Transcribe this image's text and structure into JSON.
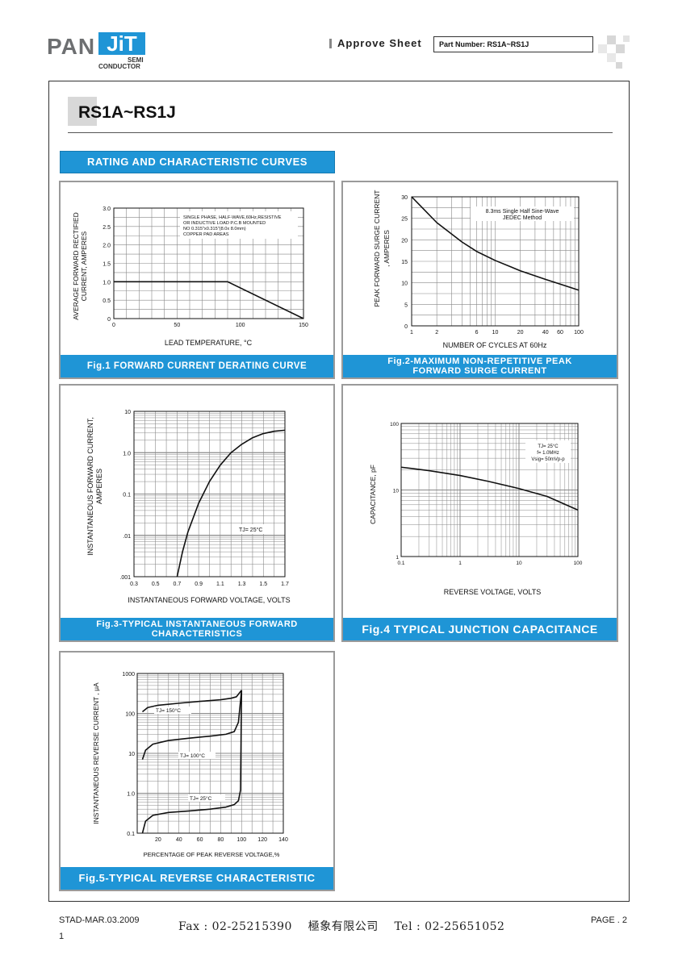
{
  "header": {
    "logo_pan": "PAN",
    "logo_jit": "JiT",
    "logo_semi": "SEMI",
    "logo_conductor": "CONDUCTOR",
    "approve_label": "Approve Sheet",
    "part_number": "Part Number: RS1A~RS1J",
    "brand_color": "#1f95d6"
  },
  "page": {
    "title": "RS1A~RS1J",
    "section_banner": "RATING AND CHARACTERISTIC CURVES"
  },
  "footer": {
    "doc_id": "STAD-MAR.03.2009",
    "page_num": "1",
    "contact": "Fax : 02-25215390    極象有限公司    Tel : 02-25651052",
    "page_label": "PAGE . 2"
  },
  "chart_data": [
    {
      "type": "line",
      "caption": "Fig.1 FORWARD CURRENT DERATING CURVE",
      "xlabel": "LEAD TEMPERATURE, °C",
      "ylabel": "AVERAGE FORWARD RECTIFIED CURRENT, AMPERES",
      "xlim": [
        0,
        150
      ],
      "ylim": [
        0,
        3.0
      ],
      "xticks": [
        "0",
        "50",
        "100",
        "150"
      ],
      "yticks": [
        "0",
        "0.5",
        "1.0",
        "1.5",
        "2.0",
        "2.5",
        "3.0"
      ],
      "annotation": [
        "SINGLE PHASE, HALF-WAVE,60Hz,RESISTIVE",
        "OR INDUCTIVE LOAD P.C.B MOUNTED",
        "NO 0.315\"x0.315\"(8.0x 8.0mm)",
        "COPPER PAD AREAS"
      ],
      "x": [
        0,
        90,
        150
      ],
      "y": [
        1.0,
        1.0,
        0
      ]
    },
    {
      "type": "line",
      "caption": [
        "Fig.2-MAXIMUM NON-REPETITIVE PEAK",
        "FORWARD SURGE CURRENT"
      ],
      "xlabel": "NUMBER OF CYCLES AT 60Hz",
      "ylabel": [
        "PEAK FORWARD SURGE CURRENT",
        ", AMPERES"
      ],
      "xscale": "log",
      "xlim": [
        1,
        100
      ],
      "ylim": [
        0,
        30
      ],
      "xticks": [
        "1",
        "2",
        "6",
        "10",
        "20",
        "40",
        "60",
        "100"
      ],
      "yticks": [
        "0",
        "5",
        "10",
        "15",
        "20",
        "25",
        "30"
      ],
      "annotation": [
        "8.3ms Single Half Sine-Wave",
        "JEDEC Method"
      ],
      "x": [
        1,
        2,
        4,
        6,
        10,
        20,
        40,
        60,
        100
      ],
      "y": [
        30,
        24,
        19.5,
        17.3,
        15.2,
        12.8,
        10.8,
        9.7,
        8.3
      ]
    },
    {
      "type": "line",
      "caption": [
        "Fig.3-TYPICAL INSTANTANEOUS FORWARD",
        "CHARACTERISTICS"
      ],
      "xlabel": "INSTANTANEOUS FORWARD VOLTAGE, VOLTS",
      "ylabel": [
        "INSTANTANEOUS FORWARD CURRENT,",
        "AMPERES"
      ],
      "yscale": "log",
      "xlim": [
        0.3,
        1.7
      ],
      "ylim": [
        0.001,
        10
      ],
      "xticks": [
        "0.3",
        "0.5",
        "0.7",
        "0.9",
        "1.1",
        "1.3",
        "1.5",
        "1.7"
      ],
      "yticks": [
        ".001",
        ".01",
        "0.1",
        "1.0",
        "10"
      ],
      "annotation": "TJ= 25°C",
      "x": [
        0.7,
        0.75,
        0.8,
        0.9,
        1.0,
        1.1,
        1.2,
        1.3,
        1.4,
        1.5,
        1.6,
        1.7
      ],
      "y": [
        0.001,
        0.004,
        0.012,
        0.06,
        0.2,
        0.5,
        1.0,
        1.6,
        2.3,
        2.9,
        3.3,
        3.5
      ]
    },
    {
      "type": "line",
      "caption": "Fig.4 TYPICAL JUNCTION CAPACITANCE",
      "xlabel": "REVERSE VOLTAGE, VOLTS",
      "ylabel": "CAPACITANCE, pF",
      "xscale": "log",
      "yscale": "log",
      "xlim": [
        0.1,
        100
      ],
      "ylim": [
        1,
        100
      ],
      "xticks": [
        "0.1",
        "1",
        "10",
        "100"
      ],
      "yticks": [
        "1",
        "10",
        "100"
      ],
      "annotation": [
        "TJ= 25°C",
        "f= 1.0MHz",
        "Vsig= 50mVp-p"
      ],
      "x": [
        0.1,
        0.3,
        1,
        3,
        10,
        30,
        100
      ],
      "y": [
        22,
        19.5,
        16.5,
        13.5,
        10.5,
        8,
        5
      ]
    },
    {
      "type": "line",
      "caption": "Fig.5-TYPICAL REVERSE CHARACTERISTIC",
      "xlabel": "PERCENTAGE OF PEAK REVERSE VOLTAGE,%",
      "ylabel": "INSTANTANEOUS REVERSE CURRENT , μA",
      "yscale": "log",
      "xlim": [
        0,
        140
      ],
      "ylim": [
        0.1,
        1000
      ],
      "xticks": [
        "20",
        "40",
        "60",
        "80",
        "100",
        "120",
        "140"
      ],
      "yticks": [
        "0.1",
        "1.0",
        "10",
        "100",
        "1000"
      ],
      "series": [
        {
          "name": "TJ= 150°C",
          "x": [
            5,
            10,
            20,
            40,
            60,
            80,
            90,
            95,
            100
          ],
          "y": [
            110,
            140,
            160,
            180,
            200,
            220,
            240,
            260,
            380
          ]
        },
        {
          "name": "TJ= 100°C",
          "x": [
            5,
            8,
            15,
            30,
            50,
            70,
            85,
            93,
            97,
            100
          ],
          "y": [
            7,
            12,
            17,
            21,
            24,
            27,
            30,
            35,
            60,
            380
          ]
        },
        {
          "name": "TJ= 25°C",
          "x": [
            5,
            8,
            15,
            30,
            50,
            70,
            85,
            93,
            97,
            99,
            100
          ],
          "y": [
            0.1,
            0.2,
            0.28,
            0.33,
            0.36,
            0.4,
            0.45,
            0.52,
            0.65,
            1.2,
            380
          ]
        }
      ]
    }
  ]
}
